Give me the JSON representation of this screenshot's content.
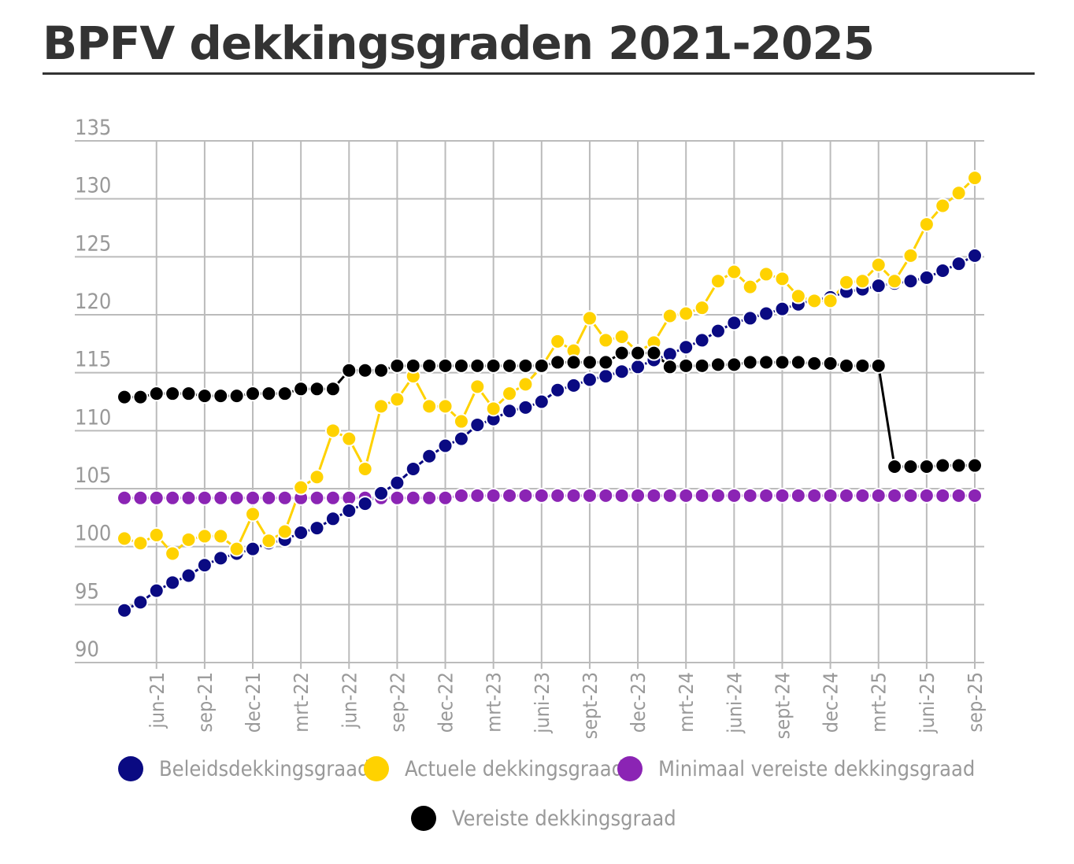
{
  "title": "BPFV dekkingsgraden 2021-2025",
  "chart_data": {
    "type": "line",
    "title": "BPFV dekkingsgraden 2021-2025",
    "xlabel": "",
    "ylabel": "",
    "ylim": [
      90,
      135
    ],
    "yticks": [
      "90",
      "95",
      "100",
      "105",
      "110",
      "115",
      "120",
      "125",
      "130",
      "135"
    ],
    "grid": true,
    "legend_placement": "bottom",
    "x": [
      "2021-04",
      "2021-05",
      "2021-06",
      "2021-07",
      "2021-08",
      "2021-09",
      "2021-10",
      "2021-11",
      "2021-12",
      "2022-01",
      "2022-02",
      "2022-03",
      "2022-04",
      "2022-05",
      "2022-06",
      "2022-07",
      "2022-08",
      "2022-09",
      "2022-10",
      "2022-11",
      "2022-12",
      "2023-01",
      "2023-02",
      "2023-03",
      "2023-04",
      "2023-05",
      "2023-06",
      "2023-07",
      "2023-08",
      "2023-09",
      "2023-10",
      "2023-11",
      "2023-12",
      "2024-01",
      "2024-02",
      "2024-03",
      "2024-04",
      "2024-05",
      "2024-06",
      "2024-07",
      "2024-08",
      "2024-09",
      "2024-10",
      "2024-11",
      "2024-12",
      "2025-01",
      "2025-02",
      "2025-03",
      "2025-04",
      "2025-05",
      "2025-06",
      "2025-07",
      "2025-08",
      "2025-09"
    ],
    "xticks": [
      {
        "label": "jun-21",
        "at": "2021-06"
      },
      {
        "label": "sep-21",
        "at": "2021-09"
      },
      {
        "label": "dec-21",
        "at": "2021-12"
      },
      {
        "label": "mrt-22",
        "at": "2022-03"
      },
      {
        "label": "jun-22",
        "at": "2022-06"
      },
      {
        "label": "sep-22",
        "at": "2022-09"
      },
      {
        "label": "dec-22",
        "at": "2022-12"
      },
      {
        "label": "mrt-23",
        "at": "2023-03"
      },
      {
        "label": "juni-23",
        "at": "2023-06"
      },
      {
        "label": "sept-23",
        "at": "2023-09"
      },
      {
        "label": "dec-23",
        "at": "2023-12"
      },
      {
        "label": "mrt-24",
        "at": "2024-03"
      },
      {
        "label": "juni-24",
        "at": "2024-06"
      },
      {
        "label": "sept-24",
        "at": "2024-09"
      },
      {
        "label": "dec-24",
        "at": "2024-12"
      },
      {
        "label": "mrt-25",
        "at": "2025-03"
      },
      {
        "label": "juni-25",
        "at": "2025-06"
      },
      {
        "label": "sep-25",
        "at": "2025-09"
      }
    ],
    "series": [
      {
        "name": "Minimaal vereiste dekkingsgraad",
        "color": "#8b24b4",
        "values": [
          104.2,
          104.2,
          104.2,
          104.2,
          104.2,
          104.2,
          104.2,
          104.2,
          104.2,
          104.2,
          104.2,
          104.2,
          104.2,
          104.2,
          104.2,
          104.2,
          104.2,
          104.2,
          104.2,
          104.2,
          104.2,
          104.4,
          104.4,
          104.4,
          104.4,
          104.4,
          104.4,
          104.4,
          104.4,
          104.4,
          104.4,
          104.4,
          104.4,
          104.4,
          104.4,
          104.4,
          104.4,
          104.4,
          104.4,
          104.4,
          104.4,
          104.4,
          104.4,
          104.4,
          104.4,
          104.4,
          104.4,
          104.4,
          104.4,
          104.4,
          104.4,
          104.4,
          104.4,
          104.4
        ]
      },
      {
        "name": "Beleidsdekkingsgraad",
        "color": "#0a0a82",
        "values": [
          94.5,
          95.2,
          96.2,
          96.9,
          97.5,
          98.4,
          99.0,
          99.4,
          99.8,
          100.3,
          100.6,
          101.2,
          101.6,
          102.4,
          103.1,
          103.7,
          104.6,
          105.5,
          106.7,
          107.8,
          108.7,
          109.3,
          110.5,
          111.0,
          111.7,
          112.0,
          112.5,
          113.5,
          113.9,
          114.4,
          114.7,
          115.1,
          115.5,
          116.1,
          116.6,
          117.2,
          117.8,
          118.6,
          119.3,
          119.7,
          120.1,
          120.5,
          120.9,
          121.3,
          121.5,
          122.0,
          122.2,
          122.5,
          122.7,
          122.9,
          123.2,
          123.8,
          124.4,
          125.1
        ]
      },
      {
        "name": "Actuele dekkingsgraad",
        "color": "#ffd200",
        "values": [
          100.7,
          100.3,
          101.0,
          99.4,
          100.6,
          100.9,
          100.9,
          99.8,
          102.8,
          100.5,
          101.3,
          105.1,
          106.0,
          110.0,
          109.3,
          106.7,
          112.1,
          112.7,
          114.7,
          112.1,
          112.1,
          110.8,
          113.8,
          111.9,
          113.2,
          114.0,
          115.5,
          117.7,
          116.9,
          119.7,
          117.8,
          118.1,
          116.8,
          117.6,
          119.9,
          120.1,
          120.6,
          122.9,
          123.7,
          122.4,
          123.5,
          123.1,
          121.6,
          121.2,
          121.2,
          122.8,
          122.9,
          124.3,
          122.9,
          125.1,
          127.8,
          129.4,
          130.5,
          131.8
        ]
      },
      {
        "name": "Vereiste dekkingsgraad",
        "color": "#000000",
        "values": [
          112.9,
          112.9,
          113.2,
          113.2,
          113.2,
          113.0,
          113.0,
          113.0,
          113.2,
          113.2,
          113.2,
          113.6,
          113.6,
          113.6,
          115.2,
          115.2,
          115.2,
          115.6,
          115.6,
          115.6,
          115.6,
          115.6,
          115.6,
          115.6,
          115.6,
          115.6,
          115.6,
          115.9,
          115.9,
          115.9,
          115.9,
          116.7,
          116.7,
          116.7,
          115.5,
          115.6,
          115.6,
          115.7,
          115.7,
          115.9,
          115.9,
          115.9,
          115.9,
          115.8,
          115.8,
          115.6,
          115.6,
          115.6,
          106.9,
          106.9,
          106.9,
          107.0,
          107.0,
          107.0
        ]
      }
    ]
  },
  "legend": [
    {
      "label": "Beleidsdekkingsgraad",
      "color": "#0a0a82"
    },
    {
      "label": "Actuele dekkingsgraad",
      "color": "#ffd200"
    },
    {
      "label": "Minimaal vereiste dekkingsgraad",
      "color": "#8b24b4"
    },
    {
      "label": "Vereiste dekkingsgraad",
      "color": "#000000"
    }
  ]
}
